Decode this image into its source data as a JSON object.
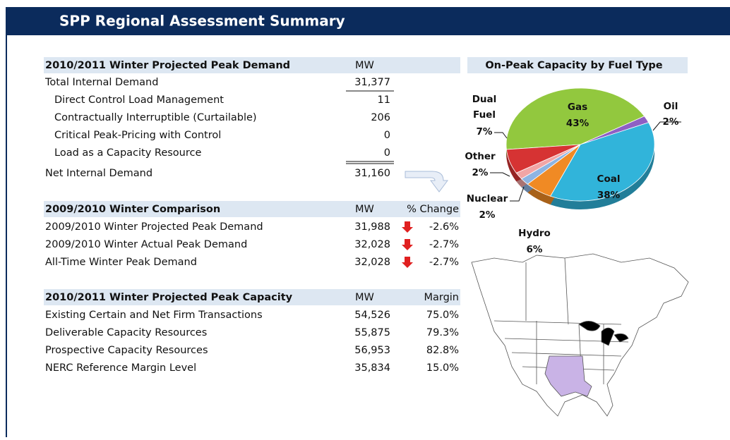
{
  "header": {
    "title": "SPP Regional Assessment Summary"
  },
  "demand": {
    "title": "2010/2011 Winter Projected Peak Demand",
    "unit": "MW",
    "rows": [
      {
        "label": "Total Internal Demand",
        "mw": "31,377"
      },
      {
        "label": "Direct Control Load Management",
        "mw": "11"
      },
      {
        "label": "Contractually Interruptible (Curtailable)",
        "mw": "206"
      },
      {
        "label": "Critical Peak-Pricing with Control",
        "mw": "0"
      },
      {
        "label": "Load as a Capacity Resource",
        "mw": "0"
      },
      {
        "label": "Net Internal Demand",
        "mw": "31,160"
      }
    ]
  },
  "comparison": {
    "title": "2009/2010 Winter Comparison",
    "unit": "MW",
    "change_header": "% Change",
    "rows": [
      {
        "label": "2009/2010 Winter Projected Peak Demand",
        "mw": "31,988",
        "change": "-2.6%"
      },
      {
        "label": "2009/2010 Winter Actual Peak Demand",
        "mw": "32,028",
        "change": "-2.7%"
      },
      {
        "label": "All-Time Winter Peak Demand",
        "mw": "32,028",
        "change": "-2.7%"
      }
    ]
  },
  "capacity": {
    "title": "2010/2011 Winter Projected Peak Capacity",
    "unit": "MW",
    "margin_header": "Margin",
    "rows": [
      {
        "label": "Existing Certain and Net Firm Transactions",
        "mw": "54,526",
        "margin": "75.0%"
      },
      {
        "label": "Deliverable Capacity Resources",
        "mw": "55,875",
        "margin": "79.3%"
      },
      {
        "label": "Prospective Capacity Resources",
        "mw": "56,953",
        "margin": "82.8%"
      },
      {
        "label": "NERC Reference Margin Level",
        "mw": "35,834",
        "margin": "15.0%"
      }
    ]
  },
  "chart_data": {
    "type": "pie",
    "title": "On-Peak Capacity by Fuel Type",
    "categories": [
      "Gas",
      "Oil",
      "Coal",
      "Hydro",
      "Nuclear",
      "Other",
      "Dual Fuel"
    ],
    "values": [
      43,
      2,
      38,
      6,
      2,
      2,
      7
    ],
    "value_labels": [
      "43%",
      "2%",
      "38%",
      "6%",
      "2%",
      "2%",
      "7%"
    ],
    "colors": [
      "#92c83e",
      "#8e5fc4",
      "#31b4da",
      "#f08a24",
      "#8db4e2",
      "#f2a5a5",
      "#d63333"
    ]
  }
}
